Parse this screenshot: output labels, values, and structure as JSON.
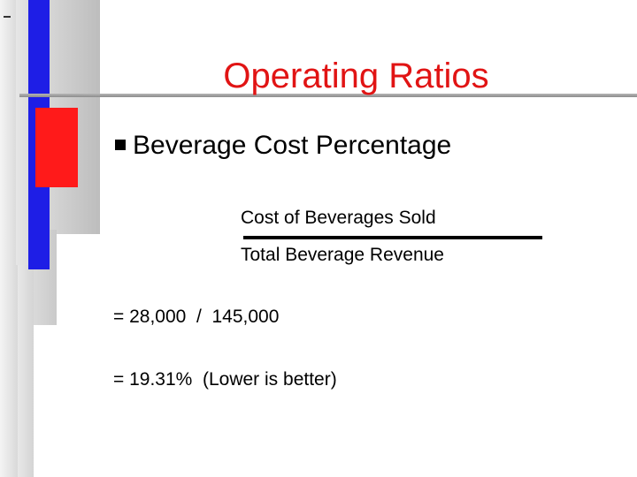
{
  "slide": {
    "title": "Operating Ratios",
    "bullet": "Beverage Cost Percentage",
    "formula": {
      "numerator": "Cost of Beverages Sold",
      "denominator": "Total Beverage Revenue"
    },
    "calculation": "= 28,000  /  145,000",
    "result": "= 19.31%  (Lower is better)"
  },
  "colors": {
    "title": "#e11414",
    "accent_blue": "#1e1ee6",
    "accent_red": "#ff1a1a"
  }
}
